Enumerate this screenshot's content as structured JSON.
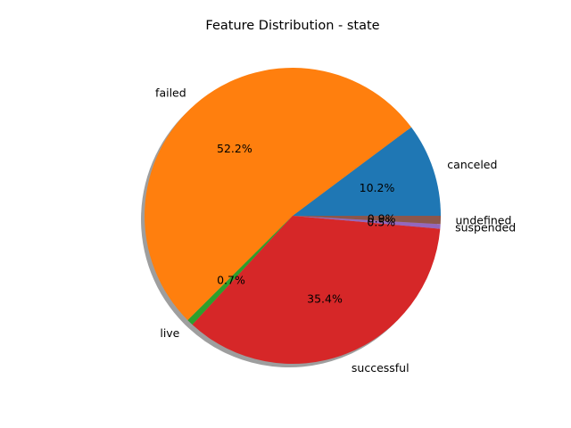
{
  "chart_data": {
    "type": "pie",
    "title": "Feature Distribution - state",
    "shadow": true,
    "start_angle_deg": 0,
    "direction": "counterclockwise",
    "slices": [
      {
        "label": "canceled",
        "value": 10.2,
        "pct_label": "10.2%",
        "color": "#1f77b4"
      },
      {
        "label": "failed",
        "value": 52.2,
        "pct_label": "52.2%",
        "color": "#ff7f0e"
      },
      {
        "label": "live",
        "value": 0.7,
        "pct_label": "0.7%",
        "color": "#2ca02c"
      },
      {
        "label": "successful",
        "value": 35.4,
        "pct_label": "35.4%",
        "color": "#d62728"
      },
      {
        "label": "suspended",
        "value": 0.5,
        "pct_label": "0.5%",
        "color": "#9467bd"
      },
      {
        "label": "undefined",
        "value": 0.9,
        "pct_label": "0.9%",
        "color": "#8c564b"
      }
    ]
  }
}
